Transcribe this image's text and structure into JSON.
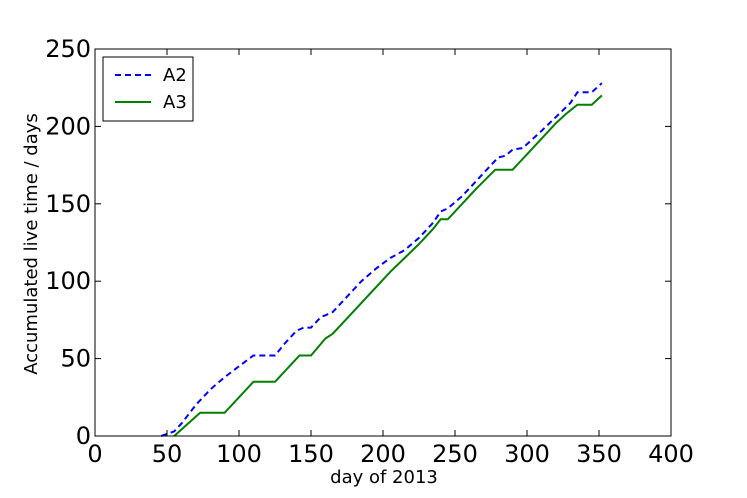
{
  "chart_data": {
    "type": "line",
    "xlabel": "day of 2013",
    "ylabel": "Accumulated live time / days",
    "xlim": [
      0,
      400
    ],
    "ylim": [
      0,
      250
    ],
    "x_ticks": [
      "0",
      "50",
      "100",
      "150",
      "200",
      "250",
      "300",
      "350",
      "400"
    ],
    "y_ticks": [
      "0",
      "50",
      "100",
      "150",
      "200",
      "250"
    ],
    "grid": false,
    "legend_position": "top-left",
    "series": [
      {
        "name": "A2",
        "style": "dashed",
        "color": "#0000ff",
        "points": [
          [
            46,
            0
          ],
          [
            55,
            3
          ],
          [
            60,
            8
          ],
          [
            70,
            20
          ],
          [
            80,
            30
          ],
          [
            90,
            38
          ],
          [
            100,
            45
          ],
          [
            110,
            52
          ],
          [
            118,
            52
          ],
          [
            125,
            52
          ],
          [
            132,
            60
          ],
          [
            140,
            68
          ],
          [
            145,
            70
          ],
          [
            150,
            70
          ],
          [
            157,
            77
          ],
          [
            160,
            78
          ],
          [
            165,
            80
          ],
          [
            175,
            90
          ],
          [
            185,
            100
          ],
          [
            195,
            108
          ],
          [
            205,
            115
          ],
          [
            215,
            120
          ],
          [
            225,
            128
          ],
          [
            235,
            138
          ],
          [
            240,
            145
          ],
          [
            245,
            147
          ],
          [
            255,
            155
          ],
          [
            265,
            165
          ],
          [
            275,
            175
          ],
          [
            280,
            180
          ],
          [
            285,
            181
          ],
          [
            290,
            185
          ],
          [
            297,
            186
          ],
          [
            310,
            197
          ],
          [
            320,
            206
          ],
          [
            330,
            215
          ],
          [
            335,
            222
          ],
          [
            345,
            222
          ],
          [
            352,
            228
          ]
        ]
      },
      {
        "name": "A3",
        "style": "solid",
        "color": "#008000",
        "points": [
          [
            55,
            0
          ],
          [
            73,
            15
          ],
          [
            80,
            15
          ],
          [
            90,
            15
          ],
          [
            110,
            35
          ],
          [
            115,
            35
          ],
          [
            125,
            35
          ],
          [
            142,
            52
          ],
          [
            150,
            52
          ],
          [
            160,
            63
          ],
          [
            165,
            66
          ],
          [
            175,
            76
          ],
          [
            185,
            86
          ],
          [
            195,
            96
          ],
          [
            205,
            106
          ],
          [
            215,
            115
          ],
          [
            225,
            124
          ],
          [
            235,
            134
          ],
          [
            240,
            140
          ],
          [
            245,
            140
          ],
          [
            255,
            150
          ],
          [
            265,
            160
          ],
          [
            278,
            172
          ],
          [
            290,
            172
          ],
          [
            295,
            177
          ],
          [
            300,
            182
          ],
          [
            310,
            192
          ],
          [
            320,
            202
          ],
          [
            327,
            208
          ],
          [
            335,
            214
          ],
          [
            345,
            214
          ],
          [
            352,
            220
          ]
        ]
      }
    ]
  }
}
